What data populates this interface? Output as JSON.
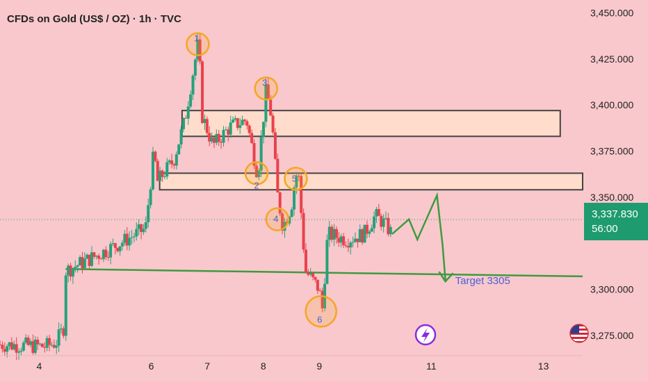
{
  "header": {
    "title": "CFDs on Gold (US$ / OZ) · 1h · TVC"
  },
  "colors": {
    "background": "#f8c8cc",
    "up": "#26a17b",
    "down": "#e8424c",
    "zone": "#ffdccb",
    "marker": "#f5a623",
    "target_line": "#3f9a3f",
    "label": "#4b5fd6"
  },
  "price_tag": {
    "price": "3,337.830",
    "countdown": "56:00",
    "value": 3337.83
  },
  "icons": {
    "flash": "lightning-icon",
    "flag": "us-flag-icon"
  },
  "chart_data": {
    "type": "candlestick",
    "title": "CFDs on Gold (US$ / OZ) · 1h · TVC",
    "ylim": [
      3264,
      3457
    ],
    "y_ticks": [
      3450,
      3425,
      3400,
      3375,
      3350,
      3300,
      3275
    ],
    "y_tick_labels": [
      "3,450.000",
      "3,425.000",
      "3,400.000",
      "3,375.000",
      "3,350.000",
      "3,300.000",
      "3,275.000"
    ],
    "x_range": [
      3.3,
      13.7
    ],
    "x_ticks": [
      4,
      6,
      7,
      8,
      9,
      11,
      13
    ],
    "x_tick_labels": [
      "4",
      "6",
      "7",
      "8",
      "9",
      "11",
      "13"
    ],
    "path": [
      [
        3.3,
        3270
      ],
      [
        4.1,
        3269
      ],
      [
        4.3,
        3271
      ],
      [
        4.45,
        3280
      ],
      [
        4.47,
        3310
      ],
      [
        5.0,
        3318
      ],
      [
        5.5,
        3326
      ],
      [
        5.9,
        3333
      ],
      [
        6.05,
        3376
      ],
      [
        6.1,
        3358
      ],
      [
        6.4,
        3370
      ],
      [
        6.6,
        3392
      ],
      [
        6.85,
        3436
      ],
      [
        6.9,
        3395
      ],
      [
        7.1,
        3378
      ],
      [
        7.4,
        3388
      ],
      [
        7.7,
        3392
      ],
      [
        7.9,
        3362
      ],
      [
        8.05,
        3408
      ],
      [
        8.15,
        3393
      ],
      [
        8.25,
        3352
      ],
      [
        8.35,
        3334
      ],
      [
        8.5,
        3345
      ],
      [
        8.55,
        3356
      ],
      [
        8.62,
        3366
      ],
      [
        8.68,
        3340
      ],
      [
        8.75,
        3310
      ],
      [
        9.0,
        3300
      ],
      [
        9.05,
        3288
      ],
      [
        9.15,
        3330
      ],
      [
        9.5,
        3327
      ],
      [
        9.8,
        3330
      ],
      [
        10.0,
        3340
      ],
      [
        10.15,
        3336
      ],
      [
        10.3,
        3330
      ]
    ],
    "markers": [
      {
        "label": "1",
        "x": 6.83,
        "price": 3433
      },
      {
        "label": "2",
        "x": 7.88,
        "price": 3363
      },
      {
        "label": "3",
        "x": 8.05,
        "price": 3409
      },
      {
        "label": "4",
        "x": 8.25,
        "price": 3338
      },
      {
        "label": "5",
        "x": 8.58,
        "price": 3360
      },
      {
        "label": "6",
        "x": 9.03,
        "price": 3288
      }
    ],
    "zones": [
      {
        "x_start": 6.55,
        "x_end": 13.3,
        "top": 3397,
        "bottom": 3383
      },
      {
        "x_start": 6.15,
        "x_end": 13.7,
        "top": 3363,
        "bottom": 3354
      }
    ],
    "support_line": {
      "x_start": 4.47,
      "x_end": 13.7,
      "price_start": 3311,
      "price_end": 3307
    },
    "projection": [
      [
        10.3,
        3330
      ],
      [
        10.6,
        3338
      ],
      [
        10.75,
        3327
      ],
      [
        11.1,
        3351
      ],
      [
        11.2,
        3324
      ],
      [
        11.25,
        3305
      ]
    ],
    "target": {
      "label": "Target 3305",
      "price": 3305,
      "x": 11.3
    }
  }
}
